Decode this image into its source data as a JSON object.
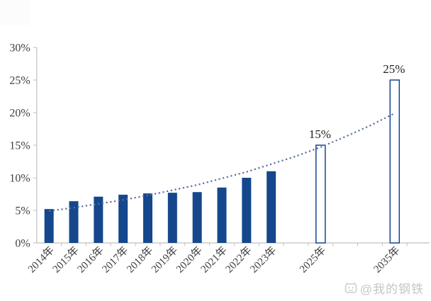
{
  "watermark": {
    "text": "@我的钢铁",
    "icon": "watermark-logo-icon",
    "color": "#c6c6c6"
  },
  "chart_data": {
    "type": "bar",
    "title": "",
    "xlabel": "",
    "ylabel": "",
    "categories": [
      "2014年",
      "2015年",
      "2016年",
      "2017年",
      "2018年",
      "2019年",
      "2020年",
      "2021年",
      "2022年",
      "2023年",
      "2025年",
      "2035年"
    ],
    "values": [
      5.2,
      6.4,
      7.1,
      7.4,
      7.6,
      7.7,
      7.8,
      8.5,
      10.0,
      11.0,
      15,
      25
    ],
    "bar_styles": [
      "solid",
      "solid",
      "solid",
      "solid",
      "solid",
      "solid",
      "solid",
      "solid",
      "solid",
      "solid",
      "outline",
      "outline"
    ],
    "slots": [
      0,
      1,
      2,
      3,
      4,
      5,
      6,
      7,
      8,
      9,
      11,
      14
    ],
    "total_slots": 16,
    "data_labels": [
      {
        "category": "2025年",
        "text": "15%"
      },
      {
        "category": "2035年",
        "text": "25%"
      }
    ],
    "y_ticks": [
      "0%",
      "5%",
      "10%",
      "15%",
      "20%",
      "25%",
      "30%"
    ],
    "ylim": [
      0,
      30
    ],
    "grid": "off",
    "legend": "none",
    "trend_line": {
      "style": "dotted",
      "pct_at_slots": [
        4.9,
        5.4,
        6.0,
        6.6,
        7.3,
        8.1,
        8.9,
        9.9,
        10.9,
        12.1,
        13.3,
        14.7,
        16.3,
        18.0,
        19.9
      ]
    },
    "colors": {
      "bar": "#15478C",
      "outline_bar_fill": "#ffffff",
      "trend": "#5C6FA0",
      "axis": "#C0C0C0",
      "tick_label": "#3F3F3F",
      "data_label": "#1F1F1F"
    }
  }
}
